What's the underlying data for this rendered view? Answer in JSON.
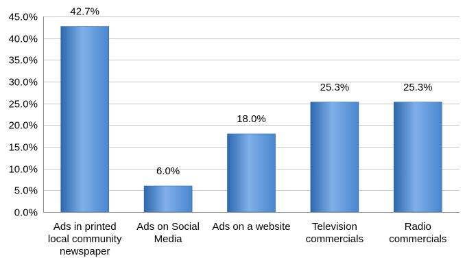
{
  "chart_data": {
    "type": "bar",
    "categories": [
      [
        "Ads in printed",
        "local community",
        "newspaper"
      ],
      [
        "Ads on Social",
        "Media"
      ],
      [
        "Ads on a website"
      ],
      [
        "Television",
        "commercials"
      ],
      [
        "Radio",
        "commercials"
      ]
    ],
    "values": [
      42.7,
      6.0,
      18.0,
      25.3,
      25.3
    ],
    "data_labels": [
      "42.7%",
      "6.0%",
      "18.0%",
      "25.3%",
      "25.3%"
    ],
    "ylim": [
      0,
      45
    ],
    "y_ticks": [
      0,
      5,
      10,
      15,
      20,
      25,
      30,
      35,
      40,
      45
    ],
    "y_tick_labels": [
      "0.0%",
      "5.0%",
      "10.0%",
      "15.0%",
      "20.0%",
      "25.0%",
      "30.0%",
      "35.0%",
      "40.0%",
      "45.0%"
    ],
    "grid": true,
    "legend": "none",
    "bar_color": "#4a86cf",
    "bar_color_light": "#7fb0ea",
    "bar_color_dark": "#2e67ad"
  }
}
